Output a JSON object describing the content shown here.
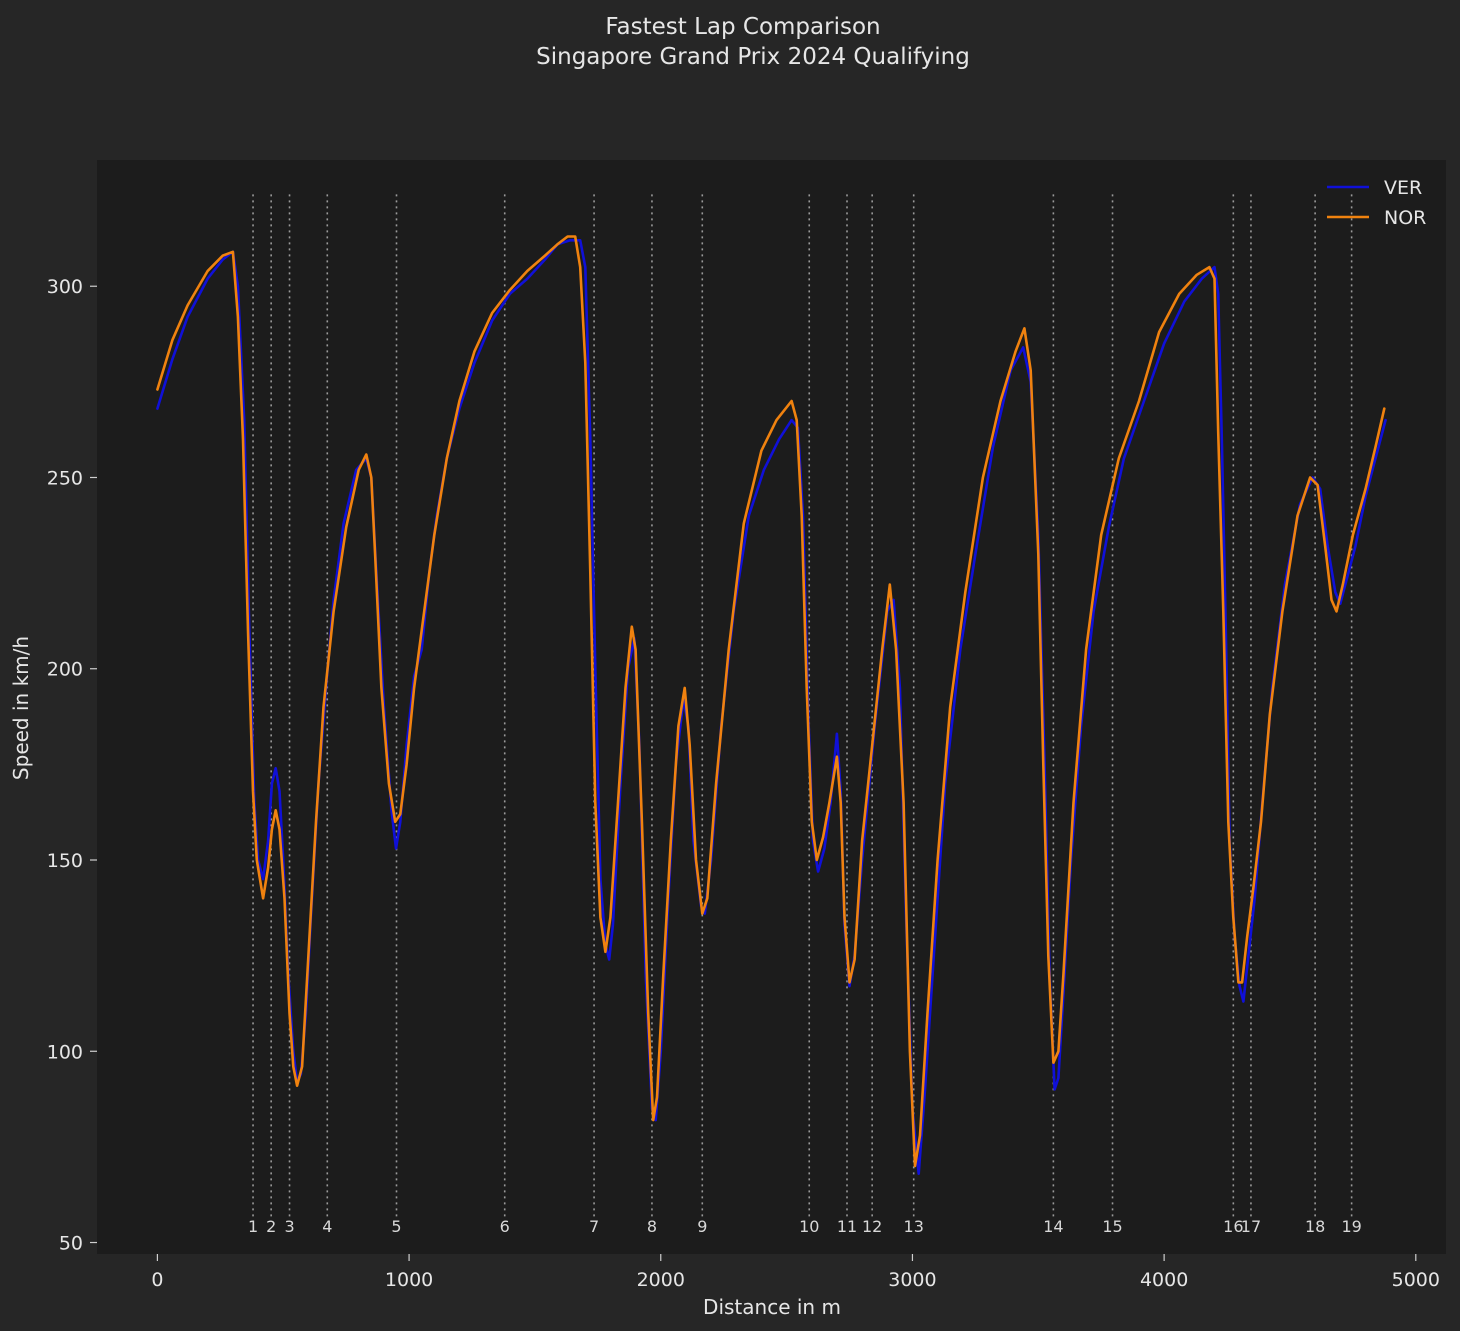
{
  "chart_data": {
    "type": "line",
    "title": "Fastest Lap Comparison",
    "subtitle": "Singapore Grand Prix 2024 Qualifying",
    "xlabel": "Distance in m",
    "ylabel": "Speed in km/h",
    "xlim": [
      -240,
      5120
    ],
    "ylim": [
      47,
      333
    ],
    "xticks": [
      0,
      1000,
      2000,
      3000,
      4000,
      5000
    ],
    "yticks": [
      50,
      100,
      150,
      200,
      250,
      300
    ],
    "legend_position": "top-right",
    "grid": false,
    "corner_marker_range": [
      56,
      324
    ],
    "corners": [
      {
        "number": "1",
        "distance": 380
      },
      {
        "number": "2",
        "distance": 452
      },
      {
        "number": "3",
        "distance": 525
      },
      {
        "number": "4",
        "distance": 675
      },
      {
        "number": "5",
        "distance": 950
      },
      {
        "number": "6",
        "distance": 1380
      },
      {
        "number": "7",
        "distance": 1735
      },
      {
        "number": "8",
        "distance": 1965
      },
      {
        "number": "9",
        "distance": 2165
      },
      {
        "number": "10",
        "distance": 2590
      },
      {
        "number": "11",
        "distance": 2740
      },
      {
        "number": "12",
        "distance": 2840
      },
      {
        "number": "13",
        "distance": 3005
      },
      {
        "number": "14",
        "distance": 3560
      },
      {
        "number": "15",
        "distance": 3795
      },
      {
        "number": "16",
        "distance": 4275
      },
      {
        "number": "17",
        "distance": 4345
      },
      {
        "number": "18",
        "distance": 4600
      },
      {
        "number": "19",
        "distance": 4745
      }
    ],
    "series": [
      {
        "name": "VER",
        "color": "#1010d8",
        "points": [
          [
            0,
            268
          ],
          [
            60,
            281
          ],
          [
            120,
            292
          ],
          [
            200,
            302
          ],
          [
            260,
            307
          ],
          [
            300,
            309
          ],
          [
            320,
            300
          ],
          [
            345,
            265
          ],
          [
            365,
            210
          ],
          [
            385,
            165
          ],
          [
            400,
            150
          ],
          [
            420,
            145
          ],
          [
            440,
            155
          ],
          [
            455,
            170
          ],
          [
            470,
            174
          ],
          [
            485,
            168
          ],
          [
            500,
            150
          ],
          [
            520,
            120
          ],
          [
            540,
            100
          ],
          [
            555,
            92
          ],
          [
            570,
            94
          ],
          [
            590,
            110
          ],
          [
            610,
            135
          ],
          [
            640,
            170
          ],
          [
            670,
            195
          ],
          [
            700,
            218
          ],
          [
            740,
            238
          ],
          [
            790,
            252
          ],
          [
            830,
            255
          ],
          [
            850,
            250
          ],
          [
            870,
            225
          ],
          [
            900,
            190
          ],
          [
            930,
            163
          ],
          [
            948,
            153
          ],
          [
            965,
            160
          ],
          [
            990,
            180
          ],
          [
            1020,
            198
          ],
          [
            1050,
            205
          ],
          [
            1080,
            225
          ],
          [
            1110,
            240
          ],
          [
            1150,
            255
          ],
          [
            1200,
            268
          ],
          [
            1260,
            280
          ],
          [
            1330,
            291
          ],
          [
            1400,
            298
          ],
          [
            1470,
            302
          ],
          [
            1540,
            307
          ],
          [
            1590,
            311
          ],
          [
            1640,
            312
          ],
          [
            1680,
            312
          ],
          [
            1700,
            305
          ],
          [
            1720,
            260
          ],
          [
            1740,
            200
          ],
          [
            1760,
            145
          ],
          [
            1780,
            128
          ],
          [
            1795,
            124
          ],
          [
            1810,
            133
          ],
          [
            1840,
            170
          ],
          [
            1870,
            200
          ],
          [
            1895,
            208
          ],
          [
            1915,
            180
          ],
          [
            1940,
            120
          ],
          [
            1965,
            85
          ],
          [
            1980,
            82
          ],
          [
            2000,
            100
          ],
          [
            2030,
            140
          ],
          [
            2060,
            175
          ],
          [
            2090,
            192
          ],
          [
            2110,
            185
          ],
          [
            2130,
            155
          ],
          [
            2160,
            138
          ],
          [
            2175,
            136
          ],
          [
            2200,
            150
          ],
          [
            2240,
            185
          ],
          [
            2290,
            215
          ],
          [
            2350,
            240
          ],
          [
            2410,
            252
          ],
          [
            2470,
            260
          ],
          [
            2520,
            265
          ],
          [
            2545,
            263
          ],
          [
            2565,
            240
          ],
          [
            2585,
            190
          ],
          [
            2605,
            155
          ],
          [
            2625,
            147
          ],
          [
            2650,
            153
          ],
          [
            2675,
            165
          ],
          [
            2700,
            183
          ],
          [
            2715,
            168
          ],
          [
            2730,
            133
          ],
          [
            2750,
            117
          ],
          [
            2770,
            125
          ],
          [
            2800,
            150
          ],
          [
            2850,
            185
          ],
          [
            2900,
            215
          ],
          [
            2925,
            218
          ],
          [
            2950,
            195
          ],
          [
            2975,
            135
          ],
          [
            3000,
            85
          ],
          [
            3025,
            68
          ],
          [
            3050,
            90
          ],
          [
            3090,
            130
          ],
          [
            3130,
            170
          ],
          [
            3190,
            205
          ],
          [
            3250,
            230
          ],
          [
            3320,
            258
          ],
          [
            3390,
            278
          ],
          [
            3440,
            284
          ],
          [
            3470,
            275
          ],
          [
            3500,
            235
          ],
          [
            3525,
            175
          ],
          [
            3545,
            120
          ],
          [
            3565,
            90
          ],
          [
            3580,
            93
          ],
          [
            3600,
            115
          ],
          [
            3630,
            150
          ],
          [
            3670,
            185
          ],
          [
            3720,
            215
          ],
          [
            3780,
            237
          ],
          [
            3840,
            255
          ],
          [
            3920,
            270
          ],
          [
            4000,
            285
          ],
          [
            4080,
            296
          ],
          [
            4150,
            302
          ],
          [
            4200,
            305
          ],
          [
            4215,
            298
          ],
          [
            4230,
            258
          ],
          [
            4245,
            210
          ],
          [
            4260,
            155
          ],
          [
            4280,
            130
          ],
          [
            4300,
            117
          ],
          [
            4315,
            113
          ],
          [
            4335,
            125
          ],
          [
            4360,
            140
          ],
          [
            4390,
            165
          ],
          [
            4430,
            195
          ],
          [
            4480,
            222
          ],
          [
            4540,
            243
          ],
          [
            4590,
            250
          ],
          [
            4620,
            247
          ],
          [
            4650,
            232
          ],
          [
            4680,
            220
          ],
          [
            4700,
            217
          ],
          [
            4720,
            222
          ],
          [
            4760,
            232
          ],
          [
            4800,
            245
          ],
          [
            4840,
            255
          ],
          [
            4880,
            265
          ]
        ]
      },
      {
        "name": "NOR",
        "color": "#f0820f",
        "points": [
          [
            0,
            273
          ],
          [
            60,
            286
          ],
          [
            120,
            295
          ],
          [
            200,
            304
          ],
          [
            260,
            308
          ],
          [
            300,
            309
          ],
          [
            320,
            292
          ],
          [
            340,
            260
          ],
          [
            360,
            210
          ],
          [
            380,
            168
          ],
          [
            395,
            150
          ],
          [
            420,
            140
          ],
          [
            440,
            148
          ],
          [
            455,
            158
          ],
          [
            470,
            163
          ],
          [
            485,
            158
          ],
          [
            505,
            140
          ],
          [
            525,
            110
          ],
          [
            540,
            96
          ],
          [
            555,
            91
          ],
          [
            575,
            96
          ],
          [
            600,
            125
          ],
          [
            630,
            160
          ],
          [
            660,
            190
          ],
          [
            700,
            215
          ],
          [
            750,
            237
          ],
          [
            800,
            252
          ],
          [
            830,
            256
          ],
          [
            850,
            250
          ],
          [
            865,
            230
          ],
          [
            890,
            195
          ],
          [
            920,
            170
          ],
          [
            945,
            160
          ],
          [
            965,
            162
          ],
          [
            990,
            175
          ],
          [
            1020,
            195
          ],
          [
            1060,
            215
          ],
          [
            1100,
            235
          ],
          [
            1150,
            255
          ],
          [
            1200,
            270
          ],
          [
            1260,
            283
          ],
          [
            1330,
            293
          ],
          [
            1400,
            299
          ],
          [
            1470,
            304
          ],
          [
            1540,
            308
          ],
          [
            1590,
            311
          ],
          [
            1630,
            313
          ],
          [
            1660,
            313
          ],
          [
            1680,
            305
          ],
          [
            1700,
            280
          ],
          [
            1720,
            225
          ],
          [
            1740,
            165
          ],
          [
            1760,
            135
          ],
          [
            1780,
            126
          ],
          [
            1800,
            135
          ],
          [
            1830,
            165
          ],
          [
            1860,
            195
          ],
          [
            1885,
            211
          ],
          [
            1900,
            205
          ],
          [
            1925,
            160
          ],
          [
            1950,
            110
          ],
          [
            1970,
            82
          ],
          [
            1985,
            88
          ],
          [
            2010,
            120
          ],
          [
            2040,
            155
          ],
          [
            2070,
            185
          ],
          [
            2095,
            195
          ],
          [
            2115,
            180
          ],
          [
            2140,
            150
          ],
          [
            2165,
            136
          ],
          [
            2185,
            140
          ],
          [
            2220,
            170
          ],
          [
            2270,
            205
          ],
          [
            2330,
            238
          ],
          [
            2400,
            257
          ],
          [
            2460,
            265
          ],
          [
            2520,
            270
          ],
          [
            2540,
            265
          ],
          [
            2560,
            240
          ],
          [
            2580,
            195
          ],
          [
            2600,
            160
          ],
          [
            2620,
            150
          ],
          [
            2645,
            156
          ],
          [
            2670,
            165
          ],
          [
            2700,
            177
          ],
          [
            2715,
            165
          ],
          [
            2730,
            135
          ],
          [
            2750,
            118
          ],
          [
            2770,
            124
          ],
          [
            2800,
            155
          ],
          [
            2840,
            180
          ],
          [
            2880,
            205
          ],
          [
            2910,
            222
          ],
          [
            2935,
            205
          ],
          [
            2965,
            165
          ],
          [
            2990,
            100
          ],
          [
            3010,
            70
          ],
          [
            3030,
            78
          ],
          [
            3060,
            110
          ],
          [
            3100,
            150
          ],
          [
            3150,
            190
          ],
          [
            3210,
            220
          ],
          [
            3280,
            250
          ],
          [
            3350,
            270
          ],
          [
            3410,
            283
          ],
          [
            3445,
            289
          ],
          [
            3470,
            278
          ],
          [
            3500,
            230
          ],
          [
            3520,
            175
          ],
          [
            3540,
            125
          ],
          [
            3560,
            97
          ],
          [
            3580,
            100
          ],
          [
            3600,
            120
          ],
          [
            3640,
            165
          ],
          [
            3690,
            205
          ],
          [
            3750,
            235
          ],
          [
            3820,
            255
          ],
          [
            3900,
            270
          ],
          [
            3980,
            288
          ],
          [
            4060,
            298
          ],
          [
            4130,
            303
          ],
          [
            4180,
            305
          ],
          [
            4200,
            302
          ],
          [
            4215,
            262
          ],
          [
            4235,
            215
          ],
          [
            4255,
            160
          ],
          [
            4275,
            135
          ],
          [
            4295,
            118
          ],
          [
            4310,
            118
          ],
          [
            4330,
            130
          ],
          [
            4355,
            143
          ],
          [
            4385,
            160
          ],
          [
            4420,
            188
          ],
          [
            4470,
            215
          ],
          [
            4530,
            240
          ],
          [
            4580,
            250
          ],
          [
            4610,
            248
          ],
          [
            4640,
            232
          ],
          [
            4665,
            218
          ],
          [
            4685,
            215
          ],
          [
            4710,
            222
          ],
          [
            4750,
            235
          ],
          [
            4800,
            247
          ],
          [
            4840,
            258
          ],
          [
            4875,
            268
          ]
        ]
      }
    ]
  }
}
